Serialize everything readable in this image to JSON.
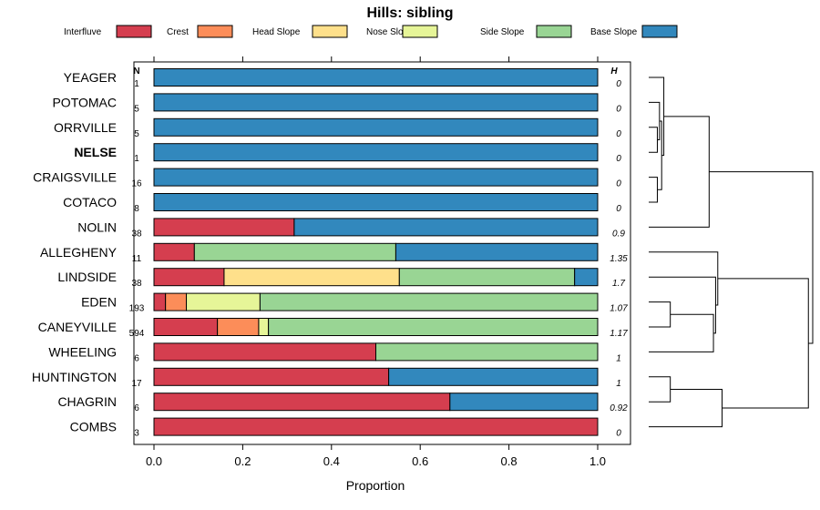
{
  "chart_data": {
    "type": "bar",
    "orientation": "horizontal-stacked",
    "title": "Hills: sibling",
    "xlabel": "Proportion",
    "xlim": [
      0,
      1
    ],
    "xticks": [
      "0.0",
      "0.2",
      "0.4",
      "0.6",
      "0.8",
      "1.0"
    ],
    "n_header": "N",
    "h_header": "H",
    "legend": [
      {
        "name": "Interfluve",
        "color": "#d53e4f"
      },
      {
        "name": "Crest",
        "color": "#fc8d59"
      },
      {
        "name": "Head Slope",
        "color": "#fee08b"
      },
      {
        "name": "Nose Slope",
        "color": "#e6f598"
      },
      {
        "name": "Side Slope",
        "color": "#99d594"
      },
      {
        "name": "Base Slope",
        "color": "#3288bd"
      }
    ],
    "rows": [
      {
        "name": "YEAGER",
        "n": "1",
        "h": "0",
        "bold": false,
        "values": [
          0,
          0,
          0,
          0,
          0,
          1
        ]
      },
      {
        "name": "POTOMAC",
        "n": "5",
        "h": "0",
        "bold": false,
        "values": [
          0,
          0,
          0,
          0,
          0,
          1
        ]
      },
      {
        "name": "ORRVILLE",
        "n": "5",
        "h": "0",
        "bold": false,
        "values": [
          0,
          0,
          0,
          0,
          0,
          1
        ]
      },
      {
        "name": "NELSE",
        "n": "1",
        "h": "0",
        "bold": true,
        "values": [
          0,
          0,
          0,
          0,
          0,
          1
        ]
      },
      {
        "name": "CRAIGSVILLE",
        "n": "16",
        "h": "0",
        "bold": false,
        "values": [
          0,
          0,
          0,
          0,
          0,
          1
        ]
      },
      {
        "name": "COTACO",
        "n": "8",
        "h": "0",
        "bold": false,
        "values": [
          0,
          0,
          0,
          0,
          0,
          1
        ]
      },
      {
        "name": "NOLIN",
        "n": "38",
        "h": "0.9",
        "bold": false,
        "values": [
          0.316,
          0,
          0,
          0,
          0,
          0.684
        ]
      },
      {
        "name": "ALLEGHENY",
        "n": "11",
        "h": "1.35",
        "bold": false,
        "values": [
          0.091,
          0,
          0,
          0,
          0.454,
          0.455
        ]
      },
      {
        "name": "LINDSIDE",
        "n": "38",
        "h": "1.7",
        "bold": false,
        "values": [
          0.158,
          0,
          0.395,
          0,
          0.395,
          0.052
        ]
      },
      {
        "name": "EDEN",
        "n": "193",
        "h": "1.07",
        "bold": false,
        "values": [
          0.026,
          0.047,
          0,
          0.166,
          0.761,
          0
        ]
      },
      {
        "name": "CANEYVILLE",
        "n": "594",
        "h": "1.17",
        "bold": false,
        "values": [
          0.143,
          0.093,
          0,
          0.022,
          0.742,
          0
        ]
      },
      {
        "name": "WHEELING",
        "n": "6",
        "h": "1",
        "bold": false,
        "values": [
          0.5,
          0,
          0,
          0,
          0.5,
          0
        ]
      },
      {
        "name": "HUNTINGTON",
        "n": "17",
        "h": "1",
        "bold": false,
        "values": [
          0.529,
          0,
          0,
          0,
          0,
          0.471
        ]
      },
      {
        "name": "CHAGRIN",
        "n": "6",
        "h": "0.92",
        "bold": false,
        "values": [
          0.667,
          0,
          0,
          0,
          0,
          0.333
        ]
      },
      {
        "name": "COMBS",
        "n": "3",
        "h": "0",
        "bold": false,
        "values": [
          1,
          0,
          0,
          0,
          0,
          0
        ]
      }
    ],
    "dendrogram": {
      "merges": [
        {
          "a": "ORRVILLE",
          "b": "NELSE",
          "height": 0.02
        },
        {
          "a": "POTOMAC",
          "b": [
            "ORRVILLE",
            "NELSE"
          ],
          "height": 0.025
        },
        {
          "a": "CRAIGSVILLE",
          "b": "COTACO",
          "height": 0.02
        },
        {
          "a": [
            "POTOMAC",
            "ORRVILLE",
            "NELSE"
          ],
          "b": [
            "CRAIGSVILLE",
            "COTACO"
          ],
          "height": 0.03
        },
        {
          "a": "YEAGER",
          "b": [
            "POTOMAC",
            "ORRVILLE",
            "NELSE",
            "CRAIGSVILLE",
            "COTACO"
          ],
          "height": 0.035
        },
        {
          "a": [
            "YEAGER",
            "POTOMAC",
            "ORRVILLE",
            "NELSE",
            "CRAIGSVILLE",
            "COTACO"
          ],
          "b": "NOLIN",
          "height": 0.14
        },
        {
          "a": "EDEN",
          "b": "CANEYVILLE",
          "height": 0.05
        },
        {
          "a": [
            "EDEN",
            "CANEYVILLE"
          ],
          "b": "WHEELING",
          "height": 0.15
        },
        {
          "a": "LINDSIDE",
          "b": [
            "EDEN",
            "CANEYVILLE",
            "WHEELING"
          ],
          "height": 0.155
        },
        {
          "a": "ALLEGHENY",
          "b": [
            "LINDSIDE",
            "EDEN",
            "CANEYVILLE",
            "WHEELING"
          ],
          "height": 0.16
        },
        {
          "a": "HUNTINGTON",
          "b": "CHAGRIN",
          "height": 0.05
        },
        {
          "a": [
            "HUNTINGTON",
            "CHAGRIN"
          ],
          "b": "COMBS",
          "height": 0.17
        },
        {
          "a": [
            "ALLEGHENY",
            "LINDSIDE",
            "EDEN",
            "CANEYVILLE",
            "WHEELING"
          ],
          "b": [
            "HUNTINGTON",
            "CHAGRIN",
            "COMBS"
          ],
          "height": 0.37
        },
        {
          "a": [
            "YEAGER",
            "POTOMAC",
            "ORRVILLE",
            "NELSE",
            "CRAIGSVILLE",
            "COTACO",
            "NOLIN"
          ],
          "b": [
            "ALLEGHENY",
            "LINDSIDE",
            "EDEN",
            "CANEYVILLE",
            "WHEELING",
            "HUNTINGTON",
            "CHAGRIN",
            "COMBS"
          ],
          "height": 0.38
        }
      ]
    }
  }
}
